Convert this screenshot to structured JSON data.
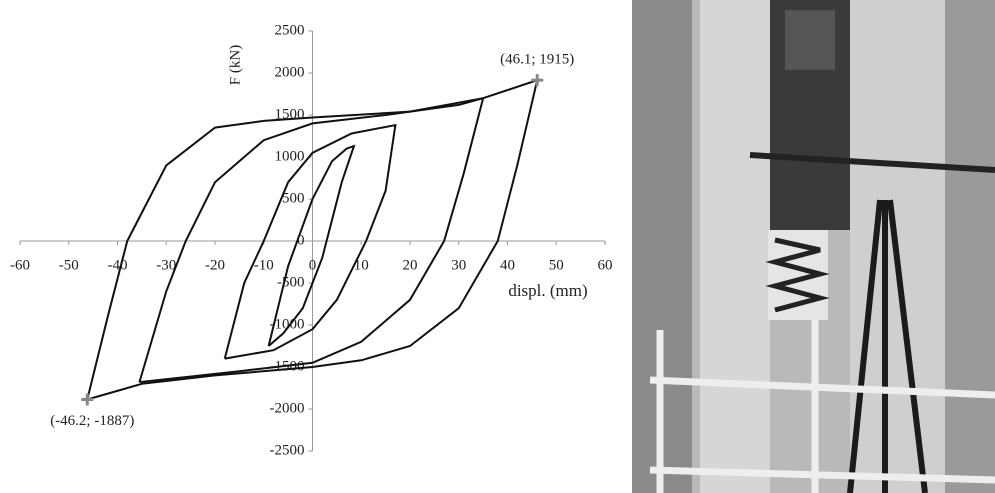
{
  "chart_data": {
    "type": "line",
    "x_label": "displ. (mm)",
    "y_label": "F (kN)",
    "xlim": [
      -60,
      60
    ],
    "xticks": [
      -60,
      -50,
      -40,
      -30,
      -20,
      -10,
      0,
      10,
      20,
      30,
      40,
      50,
      60
    ],
    "ylim": [
      -2500,
      2500
    ],
    "yticks": [
      -2500,
      -2000,
      -1500,
      -1000,
      -500,
      0,
      500,
      1000,
      1500,
      2000,
      2500
    ],
    "grid": false,
    "series": [
      {
        "color": "#111",
        "x": [
          -9,
          -5,
          0,
          4,
          7,
          8.5,
          6,
          2,
          -2,
          -6,
          -9
        ],
        "values": [
          -1250,
          -300,
          500,
          950,
          1100,
          1130,
          700,
          -200,
          -800,
          -1100,
          -1250
        ]
      },
      {
        "color": "#111",
        "x": [
          -18,
          -14,
          -10,
          -5,
          0,
          8,
          17,
          15,
          11,
          5,
          0,
          -8,
          -18
        ],
        "values": [
          -1400,
          -500,
          0,
          700,
          1050,
          1280,
          1380,
          600,
          0,
          -700,
          -1050,
          -1300,
          -1400
        ]
      },
      {
        "color": "#111",
        "x": [
          -35.5,
          -30,
          -26,
          -20,
          -10,
          0,
          15,
          30,
          35,
          31,
          27,
          20,
          10,
          0,
          -15,
          -35.5
        ],
        "values": [
          -1680,
          -600,
          0,
          700,
          1200,
          1400,
          1500,
          1620,
          1700,
          800,
          0,
          -700,
          -1200,
          -1450,
          -1550,
          -1680
        ]
      },
      {
        "color": "#111",
        "x": [
          -46.2,
          -42,
          -38,
          -30,
          -20,
          -10,
          0,
          20,
          35,
          46.1,
          42,
          38,
          30,
          20,
          10,
          0,
          -20,
          -35,
          -46.2
        ],
        "values": [
          -1887,
          -900,
          0,
          900,
          1350,
          1430,
          1470,
          1540,
          1700,
          1915,
          900,
          0,
          -800,
          -1250,
          -1420,
          -1500,
          -1600,
          -1700,
          -1887
        ]
      }
    ],
    "points": [
      {
        "x": 46.1,
        "y": 1915,
        "label": "(46.1; 1915)"
      },
      {
        "x": -46.2,
        "y": -1887,
        "label": "(-46.2; -1887)"
      }
    ]
  }
}
